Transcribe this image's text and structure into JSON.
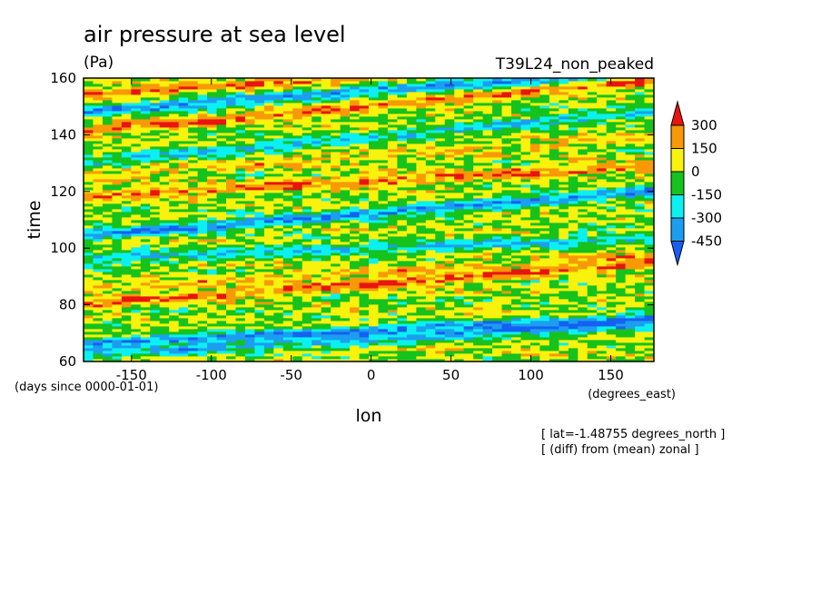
{
  "chart_data": {
    "type": "heatmap",
    "title": "air pressure at sea level",
    "units": "(Pa)",
    "run_label": "T39L24_non_peaked",
    "xlabel": "lon",
    "x_units": "(degrees_east)",
    "ylabel": "time",
    "y_units": "(days since 0000-01-01)",
    "xlim": [
      -180,
      177
    ],
    "ylim": [
      60,
      160
    ],
    "x_ticks": [
      "-150",
      "-100",
      "-50",
      "0",
      "50",
      "100",
      "150"
    ],
    "x_tick_values": [
      -150,
      -100,
      -50,
      0,
      50,
      100,
      150
    ],
    "y_ticks": [
      "60",
      "80",
      "100",
      "120",
      "140",
      "160"
    ],
    "y_tick_values": [
      60,
      80,
      100,
      120,
      140,
      160
    ],
    "colorbar": {
      "levels": [
        "300",
        "150",
        "0",
        "-150",
        "-300",
        "-450"
      ],
      "level_values": [
        300,
        150,
        0,
        -150,
        -300,
        -450
      ],
      "colors": [
        "#e8140f",
        "#f79a06",
        "#f8f20c",
        "#16c21c",
        "#0bf0f0",
        "#1c9ef0",
        "#1560f0"
      ]
    },
    "notes": [
      "[ lat=-1.48755 degrees_north ]",
      "[ (diff) from (mean) zonal ]"
    ],
    "bands": [
      {
        "day0": 62,
        "slope": 0.03,
        "value": -300
      },
      {
        "day0": 66,
        "slope": 0.025,
        "value": -450
      },
      {
        "day0": 80,
        "slope": 0.04,
        "value": 300
      },
      {
        "day0": 85,
        "slope": 0.035,
        "value": 150
      },
      {
        "day0": 96,
        "slope": 0.02,
        "value": -300
      },
      {
        "day0": 104,
        "slope": 0.045,
        "value": -450
      },
      {
        "day0": 118,
        "slope": 0.03,
        "value": 300
      },
      {
        "day0": 125,
        "slope": 0.04,
        "value": 150
      },
      {
        "day0": 130,
        "slope": 0.05,
        "value": -300
      },
      {
        "day0": 141,
        "slope": 0.05,
        "value": 300
      },
      {
        "day0": 148,
        "slope": 0.04,
        "value": -450
      },
      {
        "day0": 154,
        "slope": 0.035,
        "value": 300
      }
    ]
  }
}
